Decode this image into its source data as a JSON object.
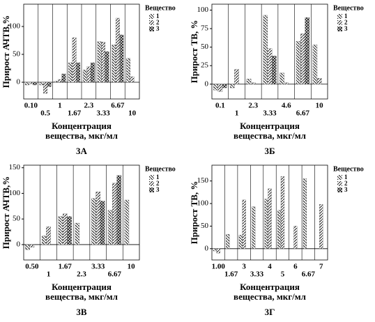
{
  "chart_data": [
    {
      "type": "bar",
      "caption": "3А",
      "ylabel": "Прирост АЧТВ,%",
      "xlabel": [
        "Концентрация",
        "вещества, мкг/мл"
      ],
      "legend_title": "Вещество",
      "categories": [
        "0.10",
        "0.5",
        "1",
        "1.67",
        "2.3",
        "3.33",
        "6.67",
        "10"
      ],
      "series": [
        {
          "name": "1",
          "color": "#222222",
          "values": [
            -5,
            -5,
            2,
            35,
            22,
            73,
            67,
            43
          ]
        },
        {
          "name": "2",
          "color": "#222222",
          "values": [
            -3,
            -20,
            5,
            80,
            28,
            72,
            115,
            10
          ]
        },
        {
          "name": "3",
          "color": "#222222",
          "values": [
            -5,
            -8,
            15,
            35,
            35,
            55,
            85,
            null
          ]
        }
      ],
      "ylim": [
        -30,
        140
      ],
      "yticks": [
        0,
        50,
        100
      ],
      "grid": true
    },
    {
      "type": "bar",
      "caption": "3Б",
      "ylabel": "Прирост ТВ, %",
      "xlabel": [
        "Концентрация",
        "вещества, мкг/мл"
      ],
      "legend_title": "Вещество",
      "categories": [
        "0.1",
        "1",
        "2.3",
        "3.33",
        "4.6",
        "6.67",
        "10"
      ],
      "series": [
        {
          "name": "1",
          "color": "#222222",
          "values": [
            -8,
            -5,
            7,
            93,
            15,
            58,
            53
          ]
        },
        {
          "name": "2",
          "color": "#222222",
          "values": [
            -10,
            20,
            2,
            48,
            2,
            68,
            8
          ]
        },
        {
          "name": "3",
          "color": "#222222",
          "values": [
            -5,
            null,
            null,
            38,
            null,
            90,
            null
          ]
        }
      ],
      "ylim": [
        -20,
        108
      ],
      "yticks": [
        0,
        25,
        50,
        75,
        100
      ],
      "grid": true
    },
    {
      "type": "bar",
      "caption": "3В",
      "ylabel": "Прирост АЧТВ,%",
      "xlabel": [
        "Концентрация",
        "вещества, мкг/мл"
      ],
      "legend_title": "Вещество",
      "categories": [
        "0.50",
        "1",
        "1.67",
        "2.3",
        "3.33",
        "6.67",
        "10"
      ],
      "series": [
        {
          "name": "1",
          "color": "#222222",
          "values": [
            -10,
            17,
            55,
            42,
            90,
            67,
            87
          ]
        },
        {
          "name": "2",
          "color": "#222222",
          "values": [
            -5,
            35,
            60,
            null,
            103,
            120,
            null
          ]
        },
        {
          "name": "3",
          "color": "#222222",
          "values": [
            null,
            null,
            55,
            null,
            85,
            135,
            null
          ]
        }
      ],
      "ylim": [
        -30,
        155
      ],
      "yticks": [
        0,
        50,
        100,
        150
      ],
      "grid": true
    },
    {
      "type": "bar",
      "caption": "3Г",
      "ylabel": "Прирост ТВ, %",
      "xlabel": [
        "Концентрация",
        "вещества, мкг/мл"
      ],
      "legend_title": "Вещество",
      "categories": [
        "1.00",
        "1.67",
        "3",
        "3.33",
        "4",
        "5",
        "6",
        "6.67",
        "7"
      ],
      "series": [
        {
          "name": "1",
          "color": "#222222",
          "values": [
            -5,
            32,
            30,
            93,
            110,
            85,
            null,
            155,
            null
          ]
        },
        {
          "name": "2",
          "color": "#222222",
          "values": [
            -10,
            null,
            108,
            null,
            133,
            160,
            50,
            null,
            98
          ]
        },
        {
          "name": "3",
          "color": "#222222",
          "values": [
            null,
            null,
            null,
            null,
            null,
            null,
            null,
            null,
            null
          ]
        }
      ],
      "ylim": [
        -25,
        185
      ],
      "yticks": [
        0,
        50,
        100,
        150
      ],
      "grid": true
    }
  ]
}
